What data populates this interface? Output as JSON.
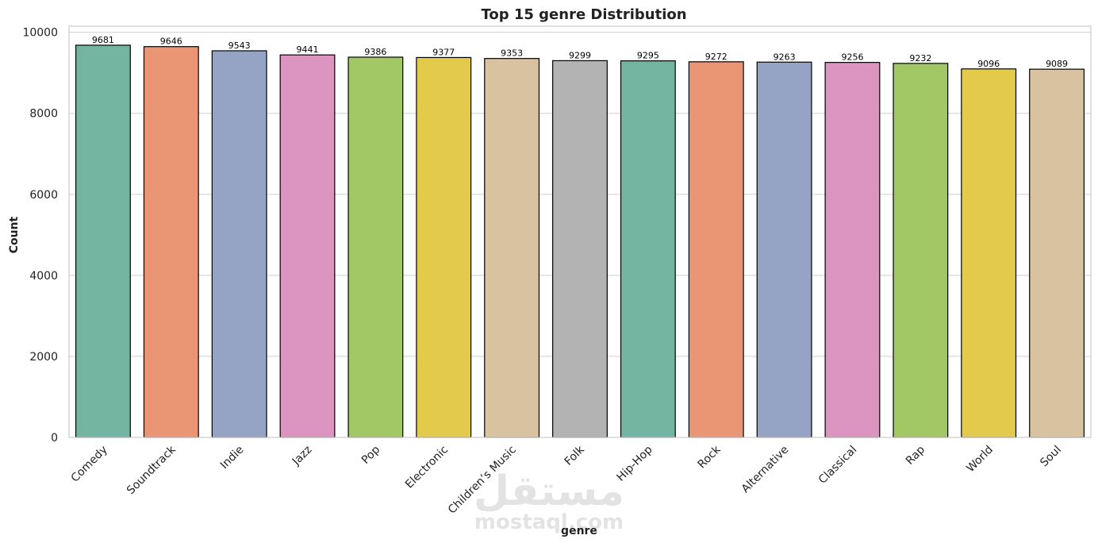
{
  "chart_data": {
    "type": "bar",
    "title": "Top 15 genre Distribution",
    "xlabel": "genre",
    "ylabel": "Count",
    "ylim": [
      0,
      10150
    ],
    "yticks": [
      0,
      2000,
      4000,
      6000,
      8000,
      10000
    ],
    "grid": true,
    "categories": [
      "Comedy",
      "Soundtrack",
      "Indie",
      "Jazz",
      "Pop",
      "Electronic",
      "Children’s Music",
      "Folk",
      "Hip-Hop",
      "Rock",
      "Alternative",
      "Classical",
      "Rap",
      "World",
      "Soul"
    ],
    "values": [
      9681,
      9646,
      9543,
      9441,
      9386,
      9377,
      9353,
      9299,
      9295,
      9272,
      9263,
      9256,
      9232,
      9096,
      9089
    ],
    "colors": [
      "#73b5a0",
      "#ea9674",
      "#95a4c4",
      "#dc95c1",
      "#a2c866",
      "#e3ca4a",
      "#d9c29f",
      "#b3b3b3",
      "#73b5a0",
      "#ea9674",
      "#95a4c4",
      "#dc95c1",
      "#a2c866",
      "#e3ca4a",
      "#d9c29f"
    ]
  },
  "watermark": {
    "arabic": "مستقل",
    "latin": "mostaql.com"
  }
}
